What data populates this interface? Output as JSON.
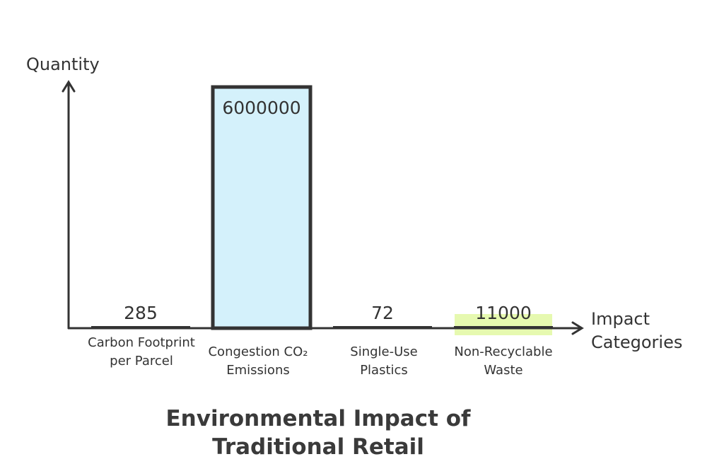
{
  "chart_data": {
    "type": "bar",
    "title": "Environmental Impact of Traditional Retail",
    "xlabel": "Impact Categories",
    "ylabel": "Quantity",
    "categories": [
      "Carbon Footprint per Parcel",
      "Congestion CO₂ Emissions",
      "Single-Use Plastics",
      "Non-Recyclable Waste"
    ],
    "values": [
      285,
      6000000,
      72,
      11000
    ],
    "value_labels": [
      "285",
      "6000000",
      "72",
      "11000"
    ],
    "bar_colors": [
      "#ffffff",
      "#d4f1fb",
      "#ffffff",
      "#e6f9b0"
    ],
    "ylim": [
      0,
      6000000
    ],
    "grid": false
  }
}
